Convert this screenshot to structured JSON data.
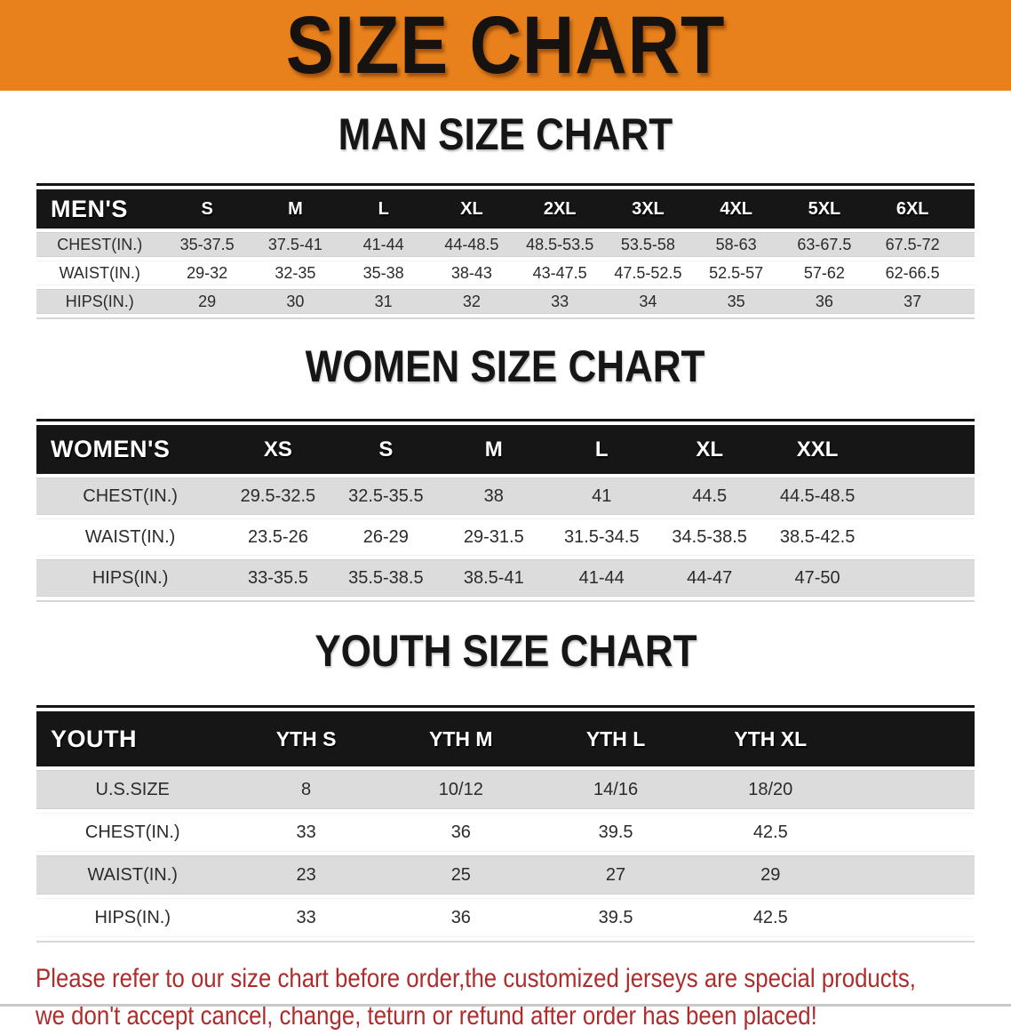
{
  "banner": {
    "title": "SIZE CHART",
    "bg_color": "#E8811B",
    "text_color": "#151210"
  },
  "sections": [
    {
      "title": "MAN SIZE CHART",
      "table": {
        "header_label": "MEN'S",
        "columns": [
          "S",
          "M",
          "L",
          "XL",
          "2XL",
          "3XL",
          "4XL",
          "5XL",
          "6XL"
        ],
        "rows": [
          {
            "label": "CHEST(IN.)",
            "values": [
              "35-37.5",
              "37.5-41",
              "41-44",
              "44-48.5",
              "48.5-53.5",
              "53.5-58",
              "58-63",
              "63-67.5",
              "67.5-72"
            ]
          },
          {
            "label": "WAIST(IN.)",
            "values": [
              "29-32",
              "32-35",
              "35-38",
              "38-43",
              "43-47.5",
              "47.5-52.5",
              "52.5-57",
              "57-62",
              "62-66.5"
            ]
          },
          {
            "label": "HIPS(IN.)",
            "values": [
              "29",
              "30",
              "31",
              "32",
              "33",
              "34",
              "35",
              "36",
              "37"
            ]
          }
        ]
      }
    },
    {
      "title": "WOMEN SIZE CHART",
      "table": {
        "header_label": "WOMEN'S",
        "columns": [
          "XS",
          "S",
          "M",
          "L",
          "XL",
          "XXL"
        ],
        "rows": [
          {
            "label": "CHEST(IN.)",
            "values": [
              "29.5-32.5",
              "32.5-35.5",
              "38",
              "41",
              "44.5",
              "44.5-48.5"
            ]
          },
          {
            "label": "WAIST(IN.)",
            "values": [
              "23.5-26",
              "26-29",
              "29-31.5",
              "31.5-34.5",
              "34.5-38.5",
              "38.5-42.5"
            ]
          },
          {
            "label": "HIPS(IN.)",
            "values": [
              "33-35.5",
              "35.5-38.5",
              "38.5-41",
              "41-44",
              "44-47",
              "47-50"
            ]
          }
        ]
      }
    },
    {
      "title": "YOUTH SIZE CHART",
      "table": {
        "header_label": "YOUTH",
        "columns": [
          "YTH S",
          "YTH M",
          "YTH L",
          "YTH XL"
        ],
        "rows": [
          {
            "label": "U.S.SIZE",
            "values": [
              "8",
              "10/12",
              "14/16",
              "18/20"
            ]
          },
          {
            "label": "CHEST(IN.)",
            "values": [
              "33",
              "36",
              "39.5",
              "42.5"
            ]
          },
          {
            "label": "WAIST(IN.)",
            "values": [
              "23",
              "25",
              "27",
              "29"
            ]
          },
          {
            "label": "HIPS(IN.)",
            "values": [
              "33",
              "36",
              "39.5",
              "42.5"
            ]
          }
        ]
      }
    }
  ],
  "footer_note": {
    "line1": "Please refer to our size chart before order,the customized jerseys are special products,",
    "line2": "we don't accept cancel, change, teturn or refund after order has been placed!",
    "color": "#AE2C2C"
  },
  "colors": {
    "banner_bg": "#E8811B",
    "table_header_bg": "#161616",
    "row_stripe": "#DCDCDC",
    "row_plain": "#FFFFFF",
    "note_text": "#AE2C2C"
  }
}
